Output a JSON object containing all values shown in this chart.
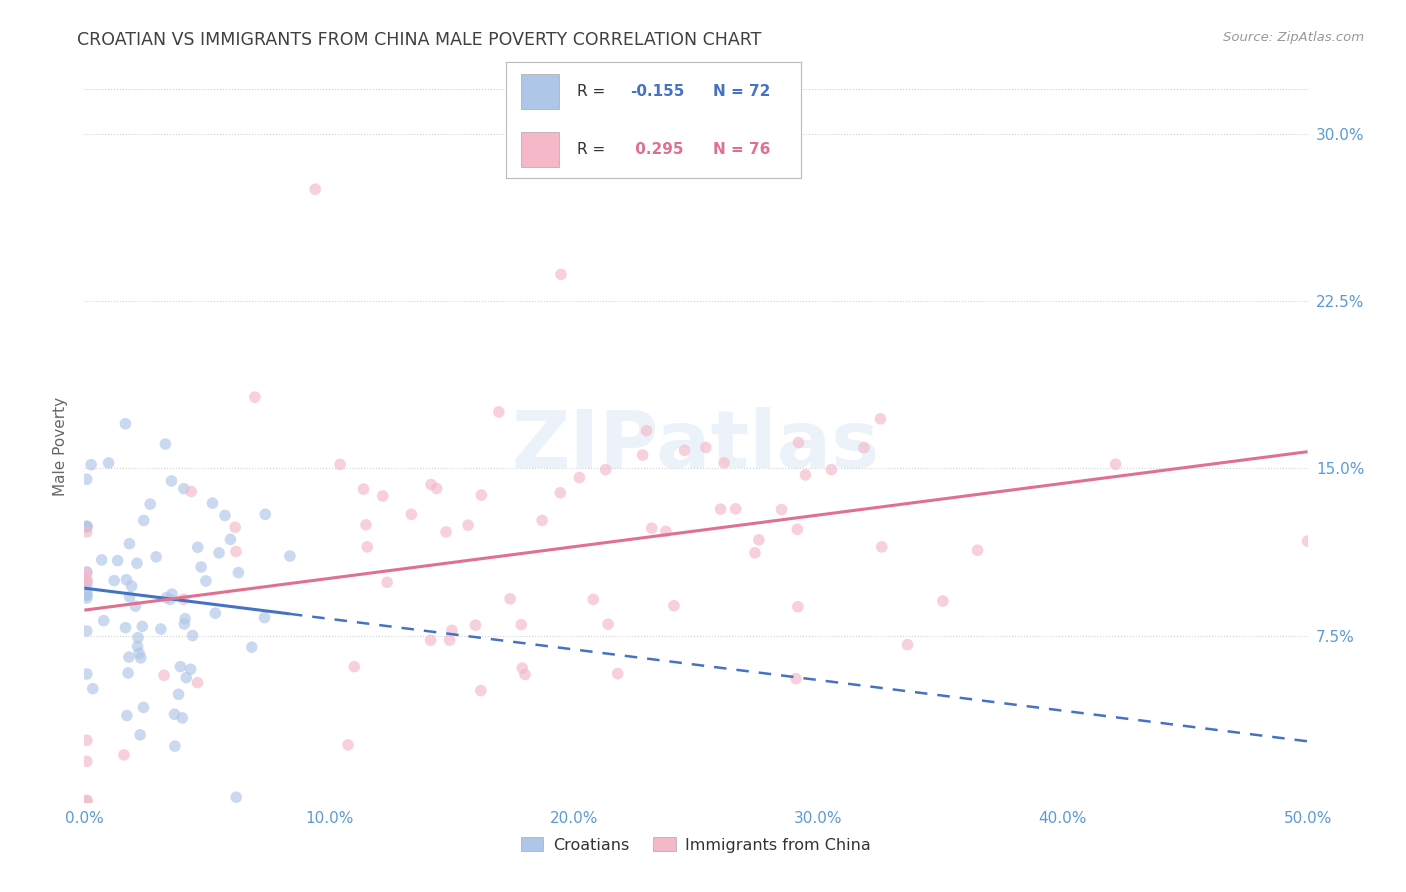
{
  "title": "CROATIAN VS IMMIGRANTS FROM CHINA MALE POVERTY CORRELATION CHART",
  "source": "Source: ZipAtlas.com",
  "ylabel": "Male Poverty",
  "yticks": [
    0.075,
    0.15,
    0.225,
    0.3
  ],
  "ytick_labels": [
    "7.5%",
    "15.0%",
    "22.5%",
    "30.0%"
  ],
  "xticks": [
    0.0,
    0.1,
    0.2,
    0.3,
    0.4,
    0.5
  ],
  "xtick_labels": [
    "0.0%",
    "10.0%",
    "20.0%",
    "30.0%",
    "40.0%",
    "50.0%"
  ],
  "xmin": 0.0,
  "xmax": 0.5,
  "ymin": 0.0,
  "ymax": 0.32,
  "series1_label": "Croatians",
  "series1_color": "#aec6e8",
  "series1_edge_color": "#aec6e8",
  "series1_line_color": "#4472c4",
  "series1_R": -0.155,
  "series1_N": 72,
  "series2_label": "Immigrants from China",
  "series2_color": "#f4b8c8",
  "series2_edge_color": "#f4b8c8",
  "series2_line_color": "#e07090",
  "series2_R": 0.295,
  "series2_N": 76,
  "watermark": "ZIPatlas",
  "background_color": "#ffffff",
  "grid_color": "#cccccc",
  "title_color": "#404040",
  "axis_tick_color": "#5b9bd5",
  "seed": 42,
  "scatter_size": 70,
  "scatter_alpha": 0.65
}
